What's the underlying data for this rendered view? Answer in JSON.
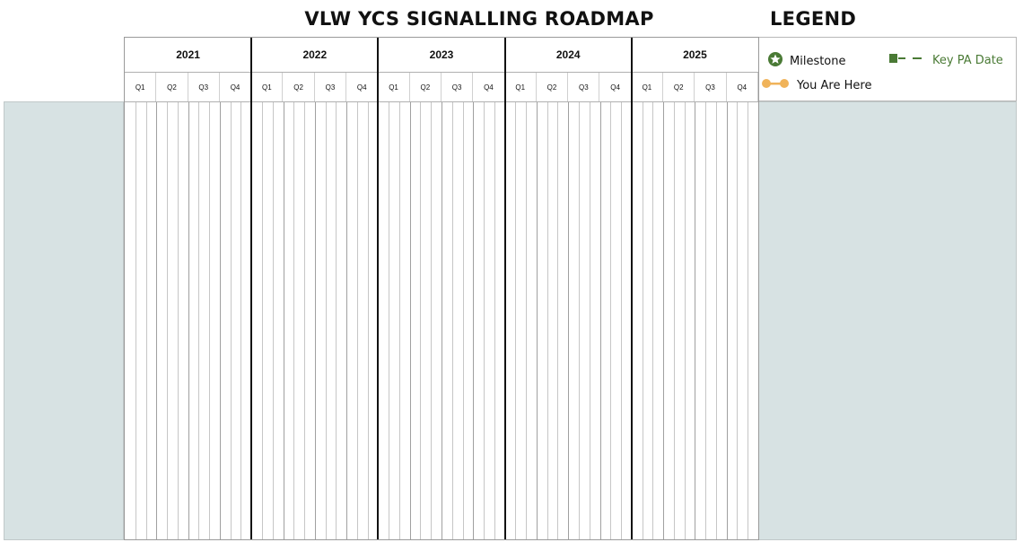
{
  "title": "VLW YCS SIGNALLING ROADMAP",
  "legend": {
    "heading": "LEGEND",
    "items": [
      {
        "label": "Milestone",
        "icon": "star-circle-icon",
        "color": "#4a7a35"
      },
      {
        "label": "Key PA Date",
        "icon": "dash-flag-icon",
        "color": "#4a7a35"
      },
      {
        "label": "You Are Here",
        "icon": "dot-line-icon",
        "color": "#f0b35a"
      }
    ]
  },
  "timeline": {
    "years": [
      "2021",
      "2022",
      "2023",
      "2024",
      "2025"
    ],
    "quarters": [
      "Q1",
      "Q2",
      "Q3",
      "Q4"
    ]
  },
  "colors": {
    "panel_bg": "#d7e2e3",
    "milestone_green": "#4a7a35",
    "you_are_here_orange": "#f0b35a"
  }
}
